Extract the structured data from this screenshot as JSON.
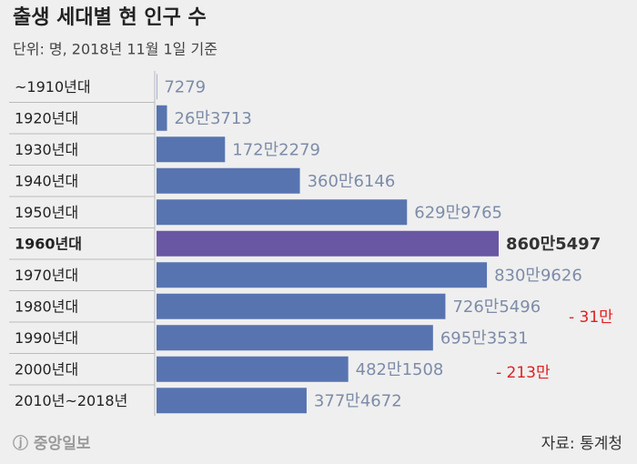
{
  "chart_data": {
    "type": "bar",
    "orientation": "horizontal",
    "title": "출생 세대별 현 인구 수",
    "subtitle": "단위: 명, 2018년 11월 1일 기준",
    "categories": [
      "~1910년대",
      "1920년대",
      "1930년대",
      "1940년대",
      "1950년대",
      "1960년대",
      "1970년대",
      "1980년대",
      "1990년대",
      "2000년대",
      "2010년~2018년"
    ],
    "values": [
      7279,
      263713,
      1722279,
      3606146,
      6299765,
      8605497,
      8309626,
      7265496,
      6953531,
      4821508,
      3774672
    ],
    "value_labels": [
      "7279",
      "26만3713",
      "172만2279",
      "360만6146",
      "629만9765",
      "860만5497",
      "830만9626",
      "726만5496",
      "695만3531",
      "482만1508",
      "377만4672"
    ],
    "color": "#5874b0",
    "highlight": 5,
    "highlight_color": "#6a57a3",
    "annotations": [
      "- 31만",
      "- 213만"
    ],
    "source": "자료: 통계청",
    "logo": "ⓙ 중앙일보"
  }
}
